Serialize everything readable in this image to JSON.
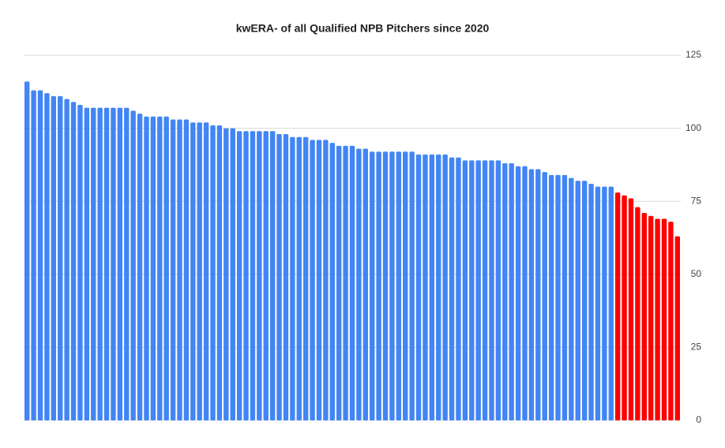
{
  "chart_data": {
    "type": "bar",
    "title": "kwERA- of all Qualified NPB Pitchers since 2020",
    "categories": [
      null,
      null,
      null,
      null,
      null,
      null,
      null,
      null,
      null,
      null,
      null,
      null,
      null,
      null,
      null,
      null,
      null,
      null,
      null,
      null,
      null,
      null,
      null,
      null,
      null,
      null,
      null,
      null,
      null,
      null,
      null,
      null,
      null,
      null,
      null,
      null,
      null,
      null,
      null,
      null,
      null,
      null,
      null,
      null,
      null,
      null,
      null,
      null,
      null,
      null,
      null,
      null,
      null,
      null,
      null,
      null,
      null,
      null,
      null,
      null,
      null,
      null,
      null,
      null,
      null,
      null,
      null,
      null,
      null,
      null,
      null,
      null,
      null,
      null,
      null,
      null,
      null,
      null,
      null,
      null,
      null,
      null,
      null,
      null,
      null,
      null,
      null,
      null,
      null,
      null,
      null,
      null,
      null,
      null,
      null,
      null,
      null,
      null,
      null
    ],
    "values": [
      116,
      113,
      113,
      112,
      111,
      111,
      110,
      109,
      108,
      107,
      107,
      107,
      107,
      107,
      107,
      107,
      106,
      105,
      104,
      104,
      104,
      104,
      103,
      103,
      103,
      102,
      102,
      102,
      101,
      101,
      100,
      100,
      99,
      99,
      99,
      99,
      99,
      99,
      98,
      98,
      97,
      97,
      97,
      96,
      96,
      96,
      95,
      94,
      94,
      94,
      93,
      93,
      92,
      92,
      92,
      92,
      92,
      92,
      92,
      91,
      91,
      91,
      91,
      91,
      90,
      90,
      89,
      89,
      89,
      89,
      89,
      89,
      88,
      88,
      87,
      87,
      86,
      86,
      85,
      84,
      84,
      84,
      83,
      82,
      82,
      81,
      80,
      80,
      80,
      78,
      77,
      76,
      73,
      71,
      70,
      69,
      69,
      68,
      63
    ],
    "colors": [
      "#4285f4",
      "#4285f4",
      "#4285f4",
      "#4285f4",
      "#4285f4",
      "#4285f4",
      "#4285f4",
      "#4285f4",
      "#4285f4",
      "#4285f4",
      "#4285f4",
      "#4285f4",
      "#4285f4",
      "#4285f4",
      "#4285f4",
      "#4285f4",
      "#4285f4",
      "#4285f4",
      "#4285f4",
      "#4285f4",
      "#4285f4",
      "#4285f4",
      "#4285f4",
      "#4285f4",
      "#4285f4",
      "#4285f4",
      "#4285f4",
      "#4285f4",
      "#4285f4",
      "#4285f4",
      "#4285f4",
      "#4285f4",
      "#4285f4",
      "#4285f4",
      "#4285f4",
      "#4285f4",
      "#4285f4",
      "#4285f4",
      "#4285f4",
      "#4285f4",
      "#4285f4",
      "#4285f4",
      "#4285f4",
      "#4285f4",
      "#4285f4",
      "#4285f4",
      "#4285f4",
      "#4285f4",
      "#4285f4",
      "#4285f4",
      "#4285f4",
      "#4285f4",
      "#4285f4",
      "#4285f4",
      "#4285f4",
      "#4285f4",
      "#4285f4",
      "#4285f4",
      "#4285f4",
      "#4285f4",
      "#4285f4",
      "#4285f4",
      "#4285f4",
      "#4285f4",
      "#4285f4",
      "#4285f4",
      "#4285f4",
      "#4285f4",
      "#4285f4",
      "#4285f4",
      "#4285f4",
      "#4285f4",
      "#4285f4",
      "#4285f4",
      "#4285f4",
      "#4285f4",
      "#4285f4",
      "#4285f4",
      "#4285f4",
      "#4285f4",
      "#4285f4",
      "#4285f4",
      "#4285f4",
      "#4285f4",
      "#4285f4",
      "#4285f4",
      "#4285f4",
      "#4285f4",
      "#4285f4",
      "#ff0000",
      "#ff0000",
      "#ff0000",
      "#ff0000",
      "#ff0000",
      "#ff0000",
      "#ff0000",
      "#ff0000",
      "#ff0000",
      "#ff0000"
    ],
    "ylim": [
      0,
      125
    ],
    "yticks": [
      0,
      25,
      50,
      75,
      100,
      125
    ],
    "grid": true,
    "y_axis_side": "right"
  }
}
